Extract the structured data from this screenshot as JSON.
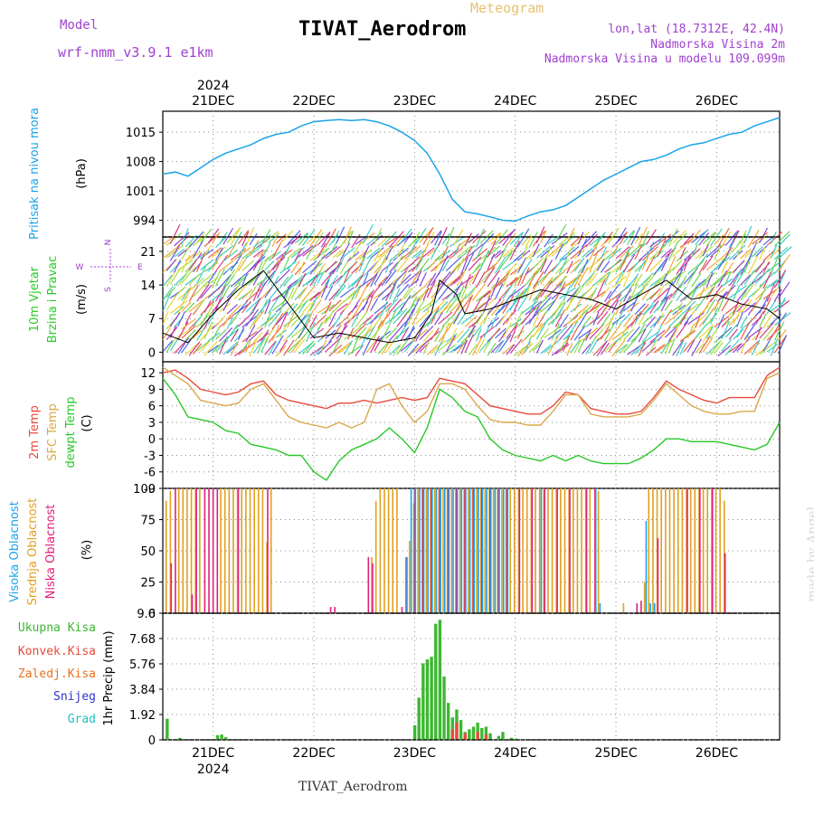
{
  "header": {
    "title": "TIVAT_Aerodrom",
    "meteogram": "Meteogram",
    "model_label": "Model",
    "model_name": "wrf-nmm_v3.9.1 e1km",
    "lonlat": "lon,lat (18.7312E, 42.4N)",
    "elevation": "Nadmorska Visina 2m",
    "model_elevation": "Nadmorska Visina u modelu 109.099m",
    "made_by": "made by Angel",
    "footer": "TIVAT_Aerodrom"
  },
  "colors": {
    "pressure": "#1aa3e8",
    "t2m": "#e84a3c",
    "tsfc": "#d9a84a",
    "dewpoint": "#28c828",
    "high_cloud": "#1aa3e8",
    "mid_cloud": "#e0a020",
    "low_cloud": "#e0207a",
    "total_precip": "#3cb830",
    "conv_precip": "#e84a3c",
    "frozen_precip": "#e87020",
    "snow": "#3030d0",
    "hail": "#20c0c0"
  },
  "axis": {
    "year": "2024",
    "dates": [
      "21DEC",
      "22DEC",
      "23DEC",
      "24DEC",
      "25DEC",
      "26DEC"
    ],
    "date_hours": [
      12,
      36,
      60,
      84,
      108,
      132
    ],
    "x_range_hours": [
      0,
      147
    ]
  },
  "panel_labels": {
    "pressure": {
      "name": "Pritisak na nivou mora",
      "unit": "(hPa)"
    },
    "wind": {
      "name1": "10m Vjetar",
      "name2": "Brzina i Pravac",
      "unit": "(m/s)",
      "compass_n": "N",
      "compass_s": "S",
      "compass_w": "W",
      "compass_e": "E"
    },
    "temp": {
      "t2": "2m Temp",
      "tsfc": "SFC Temp",
      "td": "dewpt Temp",
      "unit": "(C)"
    },
    "cloud": {
      "high": "Visoka Oblacnost",
      "mid": "Srednja Oblacnost",
      "low": "Niska Oblacnost",
      "unit": "(%)"
    },
    "precip": {
      "total": "Ukupna Kisa",
      "conv": "Konvek.Kisa",
      "frozen": "Zaledj.Kisa",
      "snow": "Snijeg",
      "hail": "Grad",
      "unit": "1hr Precip (mm)"
    }
  },
  "chart_data": [
    {
      "type": "line",
      "title": "Pritisak na nivou mora",
      "ylabel": "(hPa)",
      "ylim": [
        990,
        1020
      ],
      "yticks": [
        994,
        1001,
        1008,
        1015
      ],
      "series": [
        {
          "name": "Pritisak na nivou mora",
          "x": [
            0,
            3,
            6,
            9,
            12,
            15,
            18,
            21,
            24,
            27,
            30,
            33,
            36,
            39,
            42,
            45,
            48,
            51,
            54,
            57,
            60,
            63,
            66,
            69,
            72,
            75,
            78,
            81,
            84,
            87,
            90,
            93,
            96,
            99,
            102,
            105,
            108,
            111,
            114,
            117,
            120,
            123,
            126,
            129,
            132,
            135,
            138,
            141,
            144,
            147
          ],
          "values": [
            1005,
            1005.5,
            1004.5,
            1006.5,
            1008.5,
            1010,
            1011,
            1012,
            1013.5,
            1014.5,
            1015,
            1016.5,
            1017.5,
            1017.8,
            1018,
            1017.8,
            1018,
            1017.5,
            1016.5,
            1015,
            1013,
            1010,
            1005,
            999,
            996,
            995.5,
            994.8,
            994,
            993.8,
            995,
            996,
            996.5,
            997.5,
            999.5,
            1001.5,
            1003.5,
            1005,
            1006.5,
            1008,
            1008.5,
            1009.5,
            1011,
            1012,
            1012.5,
            1013.5,
            1014.5,
            1015,
            1016.5,
            1017.5,
            1018.5
          ]
        }
      ]
    },
    {
      "type": "line",
      "title": "10m Vjetar Brzina i Pravac",
      "ylabel": "(m/s)",
      "ylim": [
        -2,
        24
      ],
      "yticks": [
        0,
        7,
        14,
        21
      ],
      "series": [
        {
          "name": "10m Vjetar",
          "x": [
            0,
            6,
            12,
            18,
            24,
            30,
            36,
            42,
            48,
            54,
            60,
            64,
            66,
            70,
            72,
            78,
            84,
            90,
            96,
            102,
            108,
            114,
            120,
            126,
            132,
            138,
            144,
            147
          ],
          "values": [
            4,
            2,
            8,
            13,
            17,
            10,
            3,
            4,
            3,
            2,
            3,
            8,
            15,
            12,
            8,
            9,
            11,
            13,
            12,
            11,
            9,
            12,
            15,
            11,
            12,
            10,
            9,
            7
          ]
        }
      ]
    },
    {
      "type": "line",
      "title": "Temperature",
      "ylabel": "(C)",
      "ylim": [
        -9,
        14
      ],
      "yticks": [
        -9,
        -6,
        -3,
        0,
        3,
        6,
        9,
        12
      ],
      "x": [
        0,
        3,
        6,
        9,
        12,
        15,
        18,
        21,
        24,
        27,
        30,
        33,
        36,
        39,
        42,
        45,
        48,
        51,
        54,
        57,
        60,
        63,
        66,
        69,
        72,
        75,
        78,
        81,
        84,
        87,
        90,
        93,
        96,
        99,
        102,
        105,
        108,
        111,
        114,
        117,
        120,
        123,
        126,
        129,
        132,
        135,
        138,
        141,
        144,
        147
      ],
      "series": [
        {
          "name": "2m Temp",
          "values": [
            12,
            12.5,
            11,
            9,
            8.5,
            8,
            8.5,
            10,
            10.5,
            8,
            7,
            6.5,
            6,
            5.5,
            6.5,
            6.5,
            7,
            6.5,
            7,
            7.5,
            7,
            7.5,
            11,
            10.5,
            10,
            8,
            6,
            5.5,
            5,
            4.5,
            4.5,
            6,
            8.5,
            8,
            5.5,
            5,
            4.5,
            4.5,
            5,
            7.5,
            10.5,
            9,
            8,
            7,
            6.5,
            7.5,
            7.5,
            7.5,
            11.5,
            13
          ]
        },
        {
          "name": "SFC Temp",
          "values": [
            13,
            11.5,
            10,
            7,
            6.5,
            6,
            6.5,
            9,
            10,
            7,
            4,
            3,
            2.5,
            2,
            3,
            2,
            3,
            9,
            10,
            6,
            3,
            5,
            10,
            10,
            9,
            6,
            3.5,
            3,
            3,
            2.5,
            2.5,
            5,
            8,
            8,
            4.5,
            4,
            4,
            4,
            4.5,
            7,
            10,
            8,
            6,
            5,
            4.5,
            4.5,
            5,
            5,
            11,
            12
          ]
        },
        {
          "name": "dewpt Temp",
          "values": [
            11,
            8,
            4,
            3.5,
            3,
            1.5,
            1,
            -1,
            -1.5,
            -2,
            -3,
            -3,
            -6,
            -7.5,
            -4,
            -2,
            -1,
            0,
            2,
            0,
            -2.5,
            2,
            9,
            7.5,
            5,
            4,
            0,
            -2,
            -3,
            -3.5,
            -4,
            -3,
            -4,
            -3,
            -4,
            -4.5,
            -4.5,
            -4.5,
            -3.5,
            -2,
            0,
            0,
            -0.5,
            -0.5,
            -0.5,
            -1,
            -1.5,
            -2,
            -1,
            3
          ]
        }
      ]
    },
    {
      "type": "bar",
      "title": "Oblacnost",
      "ylabel": "(%)",
      "ylim": [
        0,
        100
      ],
      "yticks": [
        0,
        25,
        50,
        75,
        100
      ],
      "series": [
        {
          "name": "Srednja Oblacnost",
          "x": [
            1,
            2,
            4,
            5,
            6,
            7,
            8,
            9,
            14,
            15,
            16,
            17,
            18,
            19,
            20,
            21,
            22,
            23,
            24,
            25,
            26,
            50,
            51,
            52,
            53,
            54,
            55,
            56,
            59,
            60,
            61,
            62,
            63,
            64,
            65,
            66,
            67,
            68,
            69,
            70,
            71,
            72,
            73,
            74,
            75,
            76,
            77,
            78,
            79,
            80,
            81,
            82,
            83,
            84,
            85,
            86,
            87,
            88,
            89,
            90,
            91,
            92,
            93,
            94,
            95,
            96,
            97,
            98,
            99,
            100,
            101,
            102,
            104,
            110,
            115,
            116,
            117,
            118,
            119,
            120,
            121,
            122,
            123,
            124,
            125,
            126,
            127,
            128,
            129,
            130,
            131,
            132,
            133,
            134
          ],
          "values": [
            90,
            98,
            100,
            100,
            100,
            100,
            100,
            100,
            100,
            100,
            100,
            100,
            100,
            100,
            100,
            100,
            100,
            100,
            100,
            57,
            100,
            45,
            90,
            100,
            100,
            100,
            100,
            100,
            58,
            88,
            100,
            100,
            100,
            100,
            100,
            100,
            100,
            100,
            100,
            100,
            100,
            100,
            100,
            100,
            100,
            100,
            100,
            100,
            100,
            100,
            100,
            100,
            100,
            100,
            100,
            100,
            100,
            100,
            100,
            100,
            100,
            100,
            100,
            100,
            100,
            100,
            100,
            100,
            100,
            100,
            100,
            100,
            98,
            8,
            25,
            100,
            100,
            100,
            100,
            100,
            100,
            100,
            100,
            100,
            100,
            100,
            100,
            100,
            100,
            100,
            100,
            100,
            100,
            90
          ]
        },
        {
          "name": "Niska Oblacnost",
          "x": [
            2,
            3,
            7,
            8,
            10,
            11,
            12,
            13,
            18,
            25,
            40,
            41,
            49,
            50,
            57,
            58,
            60,
            62,
            64,
            66,
            68,
            70,
            72,
            74,
            76,
            78,
            80,
            82,
            85,
            88,
            91,
            94,
            97,
            101,
            103,
            113,
            114,
            118,
            125,
            128,
            131,
            134
          ],
          "values": [
            40,
            100,
            15,
            100,
            100,
            100,
            100,
            100,
            100,
            100,
            5,
            5,
            45,
            40,
            5,
            45,
            100,
            100,
            100,
            100,
            100,
            100,
            100,
            100,
            100,
            100,
            100,
            100,
            100,
            100,
            100,
            100,
            100,
            100,
            100,
            8,
            10,
            60,
            100,
            100,
            100,
            48
          ]
        },
        {
          "name": "Visoka Oblacnost",
          "x": [
            58,
            59,
            60,
            61,
            62,
            63,
            64,
            65,
            66,
            67,
            68,
            69,
            70,
            71,
            72,
            73,
            74,
            75,
            76,
            77,
            78,
            79,
            80,
            81,
            82,
            90,
            103,
            104,
            115,
            116,
            117
          ],
          "values": [
            45,
            100,
            100,
            100,
            100,
            100,
            100,
            100,
            100,
            100,
            100,
            100,
            100,
            100,
            100,
            100,
            100,
            100,
            100,
            100,
            100,
            100,
            100,
            100,
            100,
            100,
            100,
            8,
            74,
            8,
            8
          ]
        }
      ]
    },
    {
      "type": "bar",
      "title": "1hr Precip",
      "ylabel": "1hr Precip (mm)",
      "ylim": [
        0,
        9.6
      ],
      "yticks": [
        0,
        1.92,
        3.84,
        5.76,
        7.68,
        9.6
      ],
      "series": [
        {
          "name": "Ukupna Kisa",
          "x": [
            1,
            4,
            13,
            14,
            15,
            60,
            61,
            62,
            63,
            64,
            65,
            66,
            67,
            68,
            69,
            70,
            71,
            72,
            73,
            74,
            75,
            76,
            77,
            78,
            80,
            81,
            83,
            84
          ],
          "values": [
            1.6,
            0.15,
            0.35,
            0.4,
            0.2,
            1.1,
            3.2,
            5.8,
            6.1,
            6.3,
            8.8,
            9.1,
            4.8,
            2.8,
            1.7,
            2.3,
            1.5,
            0.6,
            0.8,
            1.0,
            1.3,
            0.9,
            1.0,
            0.5,
            0.3,
            0.6,
            0.15,
            0.1
          ]
        },
        {
          "name": "Konvek.Kisa",
          "x": [
            69,
            70,
            72,
            75,
            77
          ],
          "values": [
            0.8,
            1.3,
            0.5,
            0.6,
            0.4
          ]
        }
      ]
    }
  ]
}
